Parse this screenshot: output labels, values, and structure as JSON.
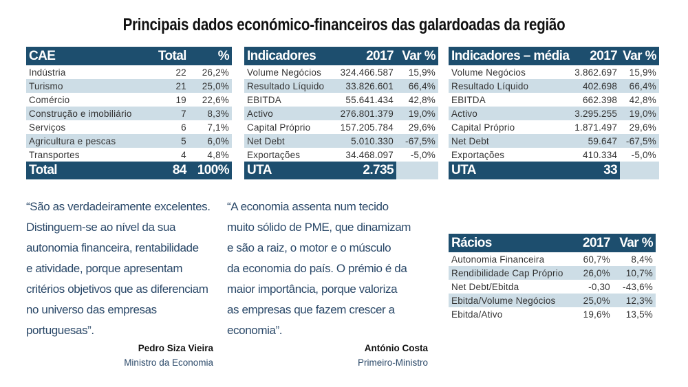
{
  "title": "Principais dados económico-financeiros das galardoadas da região",
  "cae": {
    "headers": [
      "CAE",
      "Total",
      "%"
    ],
    "rows": [
      [
        "Indústria",
        "22",
        "26,2%"
      ],
      [
        "Turismo",
        "21",
        "25,0%"
      ],
      [
        "Comércio",
        "19",
        "22,6%"
      ],
      [
        "Construção e imobiliário",
        "7",
        "8,3%"
      ],
      [
        "Serviços",
        "6",
        "7,1%"
      ],
      [
        "Agricultura e pescas",
        "5",
        "6,0%"
      ],
      [
        "Transportes",
        "4",
        "4,8%"
      ]
    ],
    "footer": [
      "Total",
      "84",
      "100%"
    ]
  },
  "indicadores": {
    "headers": [
      "Indicadores",
      "2017",
      "Var %"
    ],
    "rows": [
      [
        "Volume Negócios",
        "324.466.587",
        "15,9%"
      ],
      [
        "Resultado Líquido",
        "33.826.601",
        "66,4%"
      ],
      [
        "EBITDA",
        "55.641.434",
        "42,8%"
      ],
      [
        "Activo",
        "276.801.379",
        "19,0%"
      ],
      [
        "Capital Próprio",
        "157.205.784",
        "29,6%"
      ],
      [
        "Net Debt",
        "5.010.330",
        "-67,5%"
      ],
      [
        "Exportações",
        "34.468.097",
        "-5,0%"
      ]
    ],
    "footer": [
      "UTA",
      "2.735"
    ]
  },
  "media": {
    "headers": [
      "Indicadores – média",
      "2017",
      "Var %"
    ],
    "rows": [
      [
        "Volume Negócios",
        "3.862.697",
        "15,9%"
      ],
      [
        "Resultado  Líquido",
        "402.698",
        "66,4%"
      ],
      [
        "EBITDA",
        "662.398",
        "42,8%"
      ],
      [
        "Activo",
        "3.295.255",
        "19,0%"
      ],
      [
        "Capital Próprio",
        "1.871.497",
        "29,6%"
      ],
      [
        "Net Debt",
        "59.647",
        "-67,5%"
      ],
      [
        "Exportações",
        "410.334",
        "-5,0%"
      ]
    ],
    "footer": [
      "UTA",
      "33"
    ]
  },
  "racios": {
    "headers": [
      "Rácios",
      "2017",
      "Var %"
    ],
    "rows": [
      [
        "Autonomia Financeira",
        "60,7%",
        "8,4%"
      ],
      [
        "Rendibilidade Cap Próprio",
        "26,0%",
        "10,7%"
      ],
      [
        "Net Debt/Ebitda",
        "-0,30",
        "-43,6%"
      ],
      [
        "Ebitda/Volume Negócios",
        "25,0%",
        "12,3%"
      ],
      [
        "Ebitda/Ativo",
        "19,6%",
        "13,5%"
      ]
    ]
  },
  "quote1": {
    "lines": [
      "“São as verdadeiramente excelentes.",
      "Distinguem-se ao nível da sua",
      "autonomia financeira, rentabilidade",
      "e atividade, porque apresentam",
      "critérios objetivos que as diferenciam",
      "no universo das empresas",
      "portuguesas”."
    ],
    "name": "Pedro Siza Vieira",
    "role": "Ministro da Economia"
  },
  "quote2": {
    "lines": [
      "“A economia assenta num tecido",
      "muito sólido de PME, que dinamizam",
      "e são a raiz, o motor e o músculo",
      "da economia do país. O prémio é da",
      "maior importância, porque valoriza",
      "as empresas que fazem crescer a",
      "economia”."
    ],
    "name": "António Costa",
    "role": "Primeiro-Ministro"
  }
}
